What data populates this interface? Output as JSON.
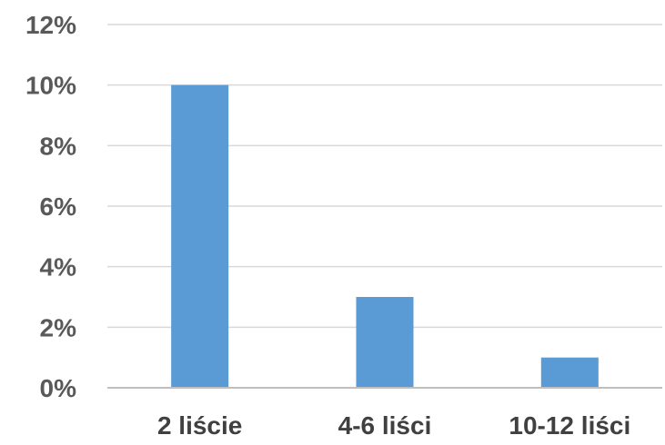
{
  "chart_data": {
    "type": "bar",
    "categories": [
      "2 liście",
      "4-6 liści",
      "10-12 liści"
    ],
    "values": [
      10,
      3,
      1
    ],
    "value_format": "percent",
    "ylim": [
      0,
      12
    ],
    "yticks": [
      "0%",
      "2%",
      "4%",
      "6%",
      "8%",
      "10%",
      "12%"
    ],
    "title": "",
    "xlabel": "",
    "ylabel": "",
    "grid": true,
    "legend": "none",
    "bar_color": "#5b9bd5"
  }
}
